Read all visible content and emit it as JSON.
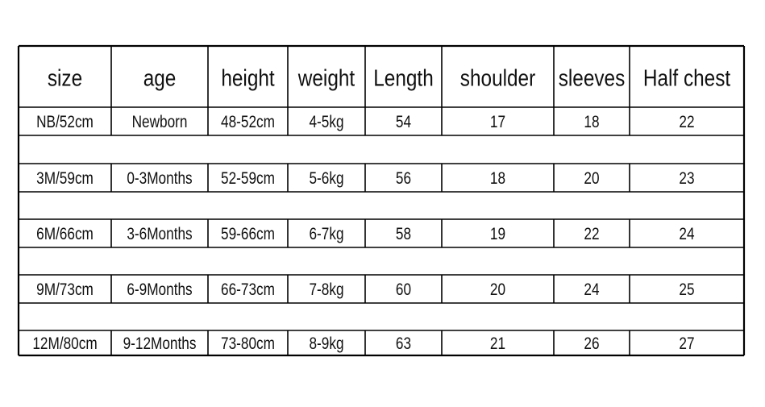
{
  "table": {
    "header": [
      "size",
      "age",
      "height",
      "weight",
      "Length",
      "shoulder",
      "sleeves",
      "Half chest"
    ],
    "rows": [
      [
        "NB/52cm",
        "Newborn",
        "48-52cm",
        "4-5kg",
        54,
        17,
        18,
        22
      ],
      [
        "3M/59cm",
        "0-3Months",
        "52-59cm",
        "5-6kg",
        56,
        18,
        20,
        23
      ],
      [
        "6M/66cm",
        "3-6Months",
        "59-66cm",
        "6-7kg",
        58,
        19,
        22,
        24
      ],
      [
        "9M/73cm",
        "6-9Months",
        "66-73cm",
        "7-8kg",
        60,
        20,
        24,
        25
      ],
      [
        "12M/80cm",
        "9-12Months",
        "73-80cm",
        "8-9kg",
        63,
        21,
        26,
        27
      ]
    ]
  }
}
